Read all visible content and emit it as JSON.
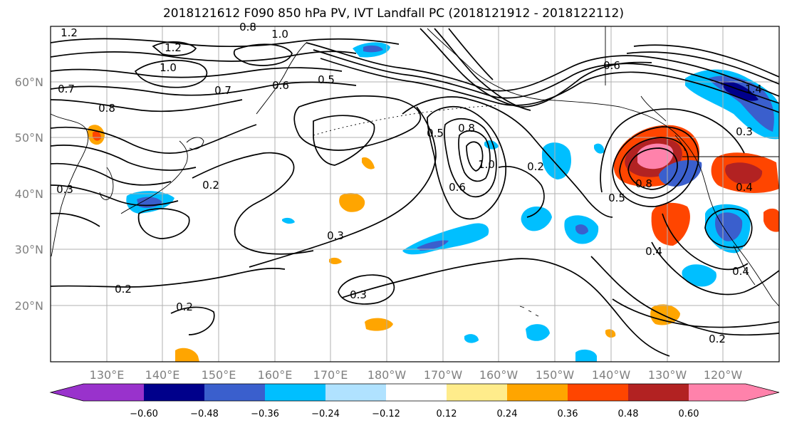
{
  "title": "2018121612 F090 850 hPa PV, IVT Landfall PC (2018121912 - 2018122112)",
  "map": {
    "projection": "equirectangular",
    "lon_range": [
      120,
      250
    ],
    "lat_range": [
      10,
      70
    ],
    "lat_ticks": [
      "60°N",
      "50°N",
      "40°N",
      "30°N",
      "20°N"
    ],
    "lon_ticks": [
      "130°E",
      "140°E",
      "150°E",
      "160°E",
      "170°E",
      "180°W",
      "170°W",
      "160°W",
      "150°W",
      "140°W",
      "130°W",
      "120°W"
    ],
    "gridlines": true,
    "tick_color": "#808080"
  },
  "colorbar": {
    "ticks": [
      "−0.60",
      "−0.48",
      "−0.36",
      "−0.24",
      "−0.12",
      "0.12",
      "0.24",
      "0.36",
      "0.48",
      "0.60"
    ],
    "colors": [
      "#9932cc",
      "#00008b",
      "#3a5fcd",
      "#00bfff",
      "#b0e2ff",
      "#ffffff",
      "#ffec8b",
      "#ffa500",
      "#ff4500",
      "#b22222",
      "#ff82ab"
    ],
    "extend": "both"
  },
  "contour_labels": [
    {
      "text": "1.2"
    },
    {
      "text": "0.8"
    },
    {
      "text": "1.0"
    },
    {
      "text": "1.2"
    },
    {
      "text": "1.0"
    },
    {
      "text": "0.7"
    },
    {
      "text": "0.8"
    },
    {
      "text": "0.7"
    },
    {
      "text": "0.6"
    },
    {
      "text": "0.5"
    },
    {
      "text": "0.3"
    },
    {
      "text": "0.2"
    },
    {
      "text": "0.3"
    },
    {
      "text": "0.2"
    },
    {
      "text": "0.2"
    },
    {
      "text": "0.3"
    },
    {
      "text": "0.5"
    },
    {
      "text": "0.8"
    },
    {
      "text": "1.0"
    },
    {
      "text": "0.6"
    },
    {
      "text": "0.2"
    },
    {
      "text": "0.5"
    },
    {
      "text": "0.8"
    },
    {
      "text": "0.4"
    },
    {
      "text": "0.4"
    },
    {
      "text": "0.2"
    },
    {
      "text": "0.3"
    },
    {
      "text": "1.4"
    },
    {
      "text": "0.6"
    },
    {
      "text": "0.4"
    }
  ],
  "contour_levels_shown": [
    0.2,
    0.3,
    0.4,
    0.5,
    0.6,
    0.7,
    0.8,
    1.0,
    1.2,
    1.4
  ]
}
